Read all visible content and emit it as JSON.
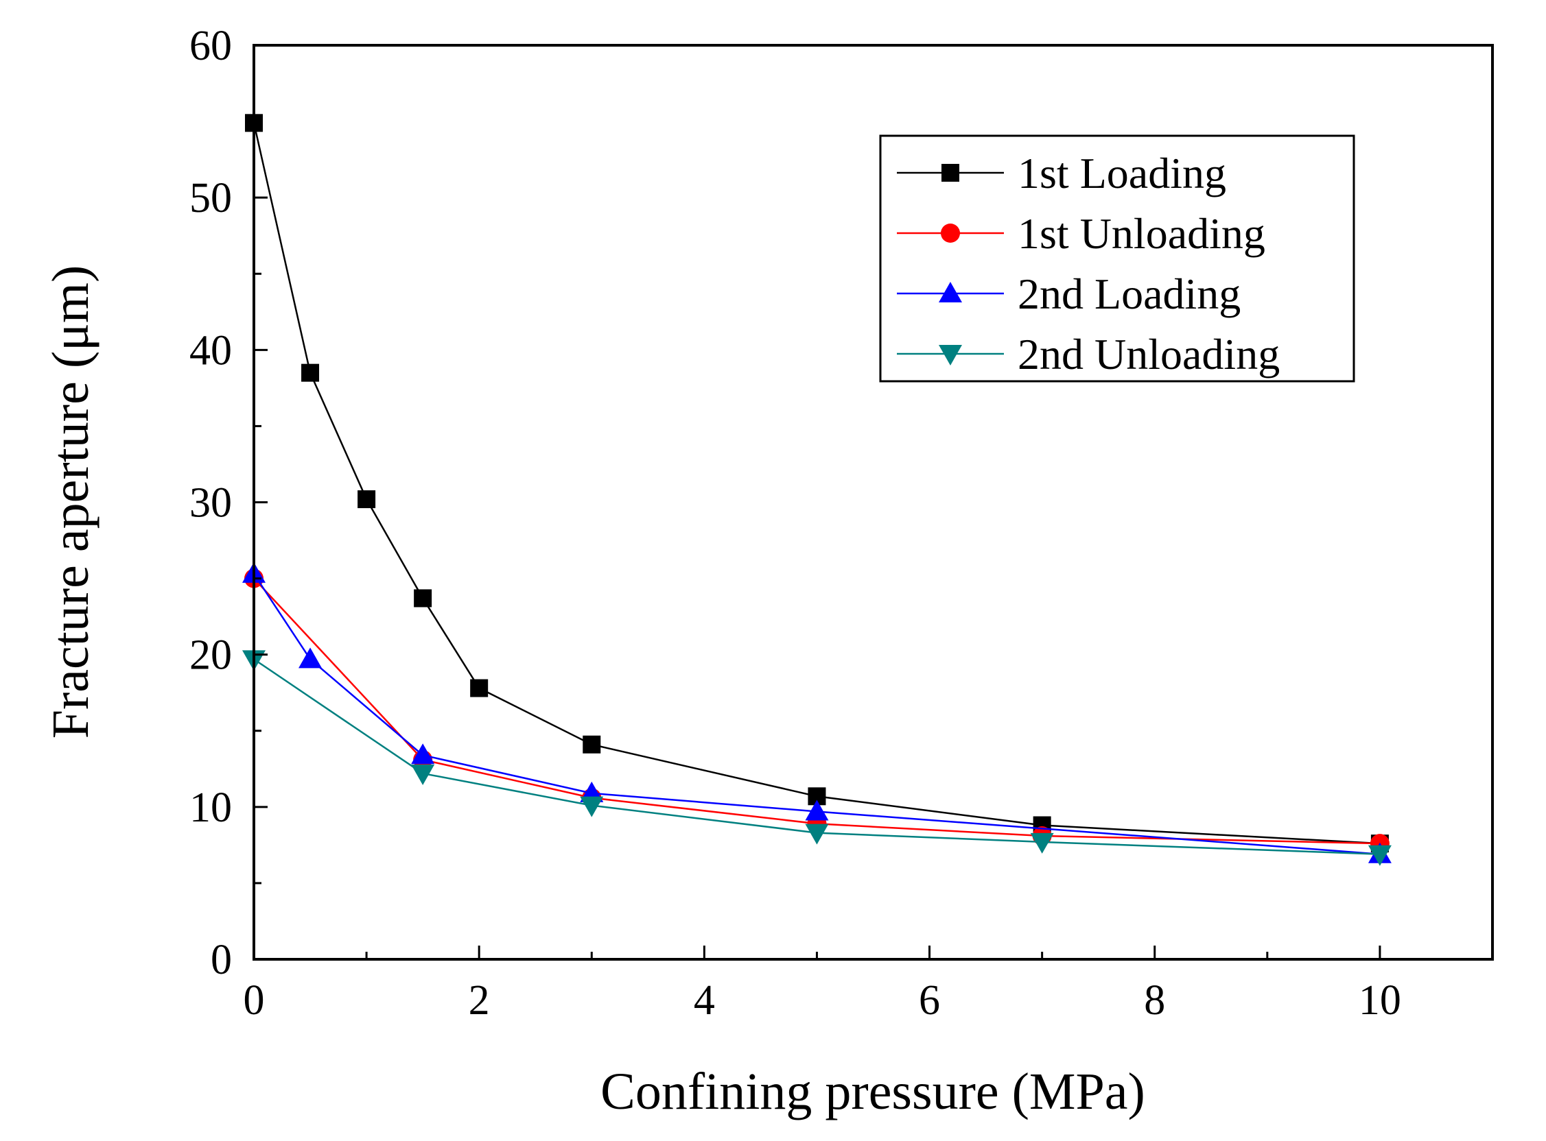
{
  "chart_data": {
    "type": "line",
    "title": "",
    "xlabel": "Confining pressure (MPa)",
    "ylabel": "Fracture aperture (μm)",
    "xlim": [
      0,
      11
    ],
    "ylim": [
      0,
      60
    ],
    "xticks": [
      0,
      2,
      4,
      6,
      8,
      10
    ],
    "yticks": [
      0,
      10,
      20,
      30,
      40,
      50,
      60
    ],
    "xtick_labels": [
      "0",
      "2",
      "4",
      "6",
      "8",
      "10"
    ],
    "ytick_labels": [
      "0",
      "10",
      "20",
      "30",
      "40",
      "50",
      "60"
    ],
    "x_minor_step": 1,
    "y_minor_step": 5,
    "grid": false,
    "legend_position": "top-right",
    "series": [
      {
        "name": "1st Loading",
        "color": "#000000",
        "marker": "square",
        "x": [
          0,
          0.5,
          1,
          1.5,
          2,
          3,
          5,
          7,
          10
        ],
        "y": [
          54.9,
          38.5,
          30.2,
          23.7,
          17.8,
          14.1,
          10.7,
          8.8,
          7.6
        ]
      },
      {
        "name": "1st Unloading",
        "color": "#ff0000",
        "marker": "circle",
        "x": [
          0,
          1.5,
          3,
          5,
          7,
          10
        ],
        "y": [
          25.0,
          13.1,
          10.6,
          8.9,
          8.1,
          7.6
        ]
      },
      {
        "name": "2nd Loading",
        "color": "#0000ff",
        "marker": "triangle-up",
        "x": [
          0,
          0.5,
          1.5,
          3,
          5,
          10
        ],
        "y": [
          25.3,
          19.7,
          13.4,
          10.9,
          9.7,
          6.9
        ]
      },
      {
        "name": "2nd Unloading",
        "color": "#008080",
        "marker": "triangle-down",
        "x": [
          0,
          1.5,
          3,
          5,
          7,
          10
        ],
        "y": [
          19.7,
          12.2,
          10.1,
          8.3,
          7.7,
          6.9
        ]
      }
    ]
  }
}
